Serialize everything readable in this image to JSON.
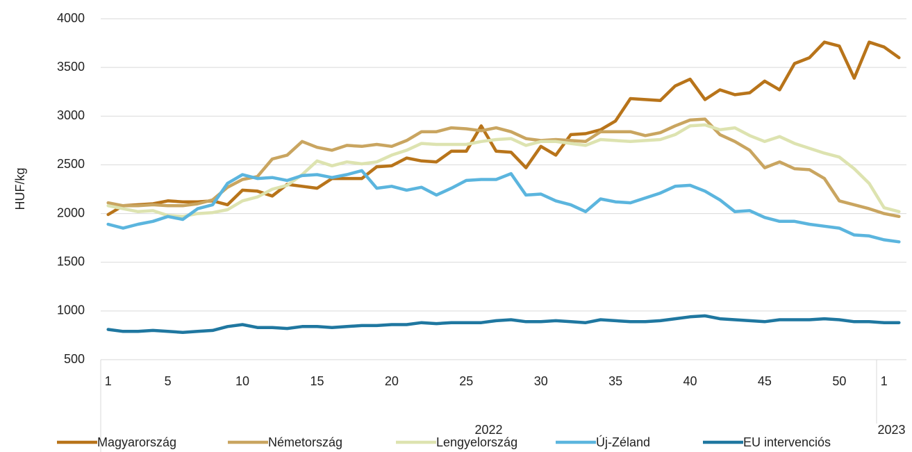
{
  "chart_data": {
    "type": "line",
    "y_label": "HUF/kg",
    "categories": [
      "1",
      null,
      null,
      null,
      "5",
      null,
      null,
      null,
      null,
      "10",
      null,
      null,
      null,
      null,
      "15",
      null,
      null,
      null,
      null,
      "20",
      null,
      null,
      null,
      null,
      "25",
      null,
      null,
      null,
      null,
      "30",
      null,
      null,
      null,
      null,
      "35",
      null,
      null,
      null,
      null,
      "40",
      null,
      null,
      null,
      null,
      "45",
      null,
      null,
      null,
      null,
      "50",
      null,
      null,
      "1",
      null
    ],
    "groups": [
      {
        "name": "2022",
        "count": 52
      },
      {
        "name": "2023",
        "count": 2
      }
    ],
    "ylim": [
      500,
      4000
    ],
    "yticks": [
      500,
      1000,
      1500,
      2000,
      2500,
      3000,
      3500,
      4000
    ],
    "grid": true,
    "legend": "bottom",
    "series": [
      {
        "name": "Magyarország",
        "color": "#b8741a",
        "values": [
          1990,
          2080,
          2090,
          2100,
          2130,
          2120,
          2120,
          2130,
          2090,
          2240,
          2230,
          2180,
          2300,
          2280,
          2260,
          2360,
          2360,
          2360,
          2480,
          2490,
          2570,
          2540,
          2530,
          2640,
          2640,
          2900,
          2640,
          2630,
          2470,
          2690,
          2600,
          2810,
          2820,
          2860,
          2950,
          3180,
          3170,
          3160,
          3310,
          3380,
          3170,
          3270,
          3220,
          3240,
          3360,
          3270,
          3540,
          3600,
          3760,
          3720,
          3390,
          3760,
          3710,
          3600
        ]
      },
      {
        "name": "Németország",
        "color": "#c9a560",
        "values": [
          2110,
          2080,
          2080,
          2090,
          2080,
          2080,
          2100,
          2140,
          2270,
          2350,
          2380,
          2560,
          2600,
          2740,
          2680,
          2650,
          2700,
          2690,
          2710,
          2690,
          2750,
          2840,
          2840,
          2880,
          2870,
          2850,
          2880,
          2840,
          2770,
          2750,
          2760,
          2750,
          2740,
          2840,
          2840,
          2840,
          2800,
          2830,
          2900,
          2960,
          2970,
          2810,
          2740,
          2650,
          2470,
          2530,
          2460,
          2450,
          2360,
          2130,
          2090,
          2050,
          2000,
          1970
        ]
      },
      {
        "name": "Lengyelország",
        "color": "#dde3b0",
        "values": [
          2080,
          2050,
          2020,
          2030,
          1980,
          1970,
          2000,
          2010,
          2040,
          2130,
          2170,
          2250,
          2290,
          2400,
          2540,
          2490,
          2530,
          2510,
          2530,
          2600,
          2650,
          2720,
          2710,
          2710,
          2710,
          2740,
          2760,
          2770,
          2700,
          2740,
          2740,
          2720,
          2700,
          2760,
          2750,
          2740,
          2750,
          2760,
          2810,
          2900,
          2910,
          2860,
          2880,
          2800,
          2740,
          2790,
          2720,
          2670,
          2620,
          2580,
          2460,
          2310,
          2060,
          2020
        ]
      },
      {
        "name": "Új-Zéland",
        "color": "#5bb5de",
        "values": [
          1890,
          1850,
          1890,
          1920,
          1970,
          1940,
          2050,
          2090,
          2310,
          2400,
          2360,
          2370,
          2340,
          2390,
          2400,
          2370,
          2400,
          2440,
          2260,
          2280,
          2240,
          2270,
          2190,
          2260,
          2340,
          2350,
          2350,
          2410,
          2190,
          2200,
          2130,
          2090,
          2020,
          2150,
          2120,
          2110,
          2160,
          2210,
          2280,
          2290,
          2230,
          2140,
          2020,
          2030,
          1960,
          1920,
          1920,
          1890,
          1870,
          1850,
          1780,
          1770,
          1730,
          1710
        ]
      },
      {
        "name": "EU intervenciós",
        "color": "#1f77a0",
        "values": [
          810,
          790,
          790,
          800,
          790,
          780,
          790,
          800,
          840,
          860,
          830,
          830,
          820,
          840,
          840,
          830,
          840,
          850,
          850,
          860,
          860,
          880,
          870,
          880,
          880,
          880,
          900,
          910,
          890,
          890,
          900,
          890,
          880,
          910,
          900,
          890,
          890,
          900,
          920,
          940,
          950,
          920,
          910,
          900,
          890,
          910,
          910,
          910,
          920,
          910,
          890,
          890,
          880,
          880
        ]
      }
    ]
  }
}
